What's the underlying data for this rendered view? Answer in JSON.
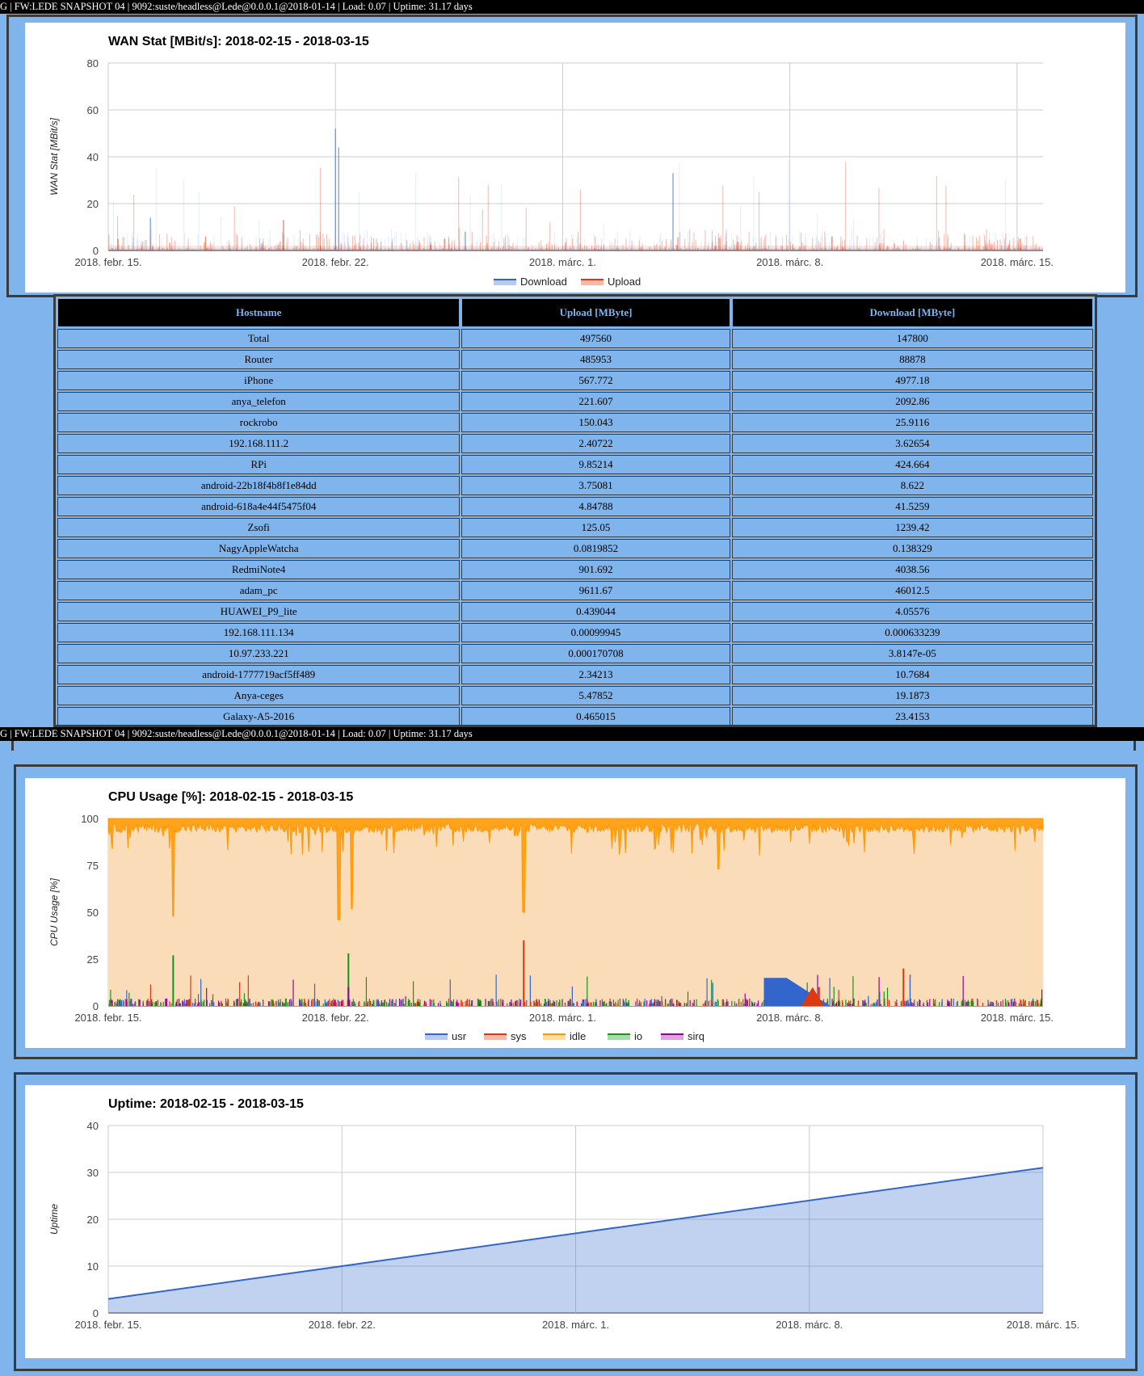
{
  "statusbar": {
    "text": "G | FW:LEDE SNAPSHOT 04 | 9092:suste/headless@Lede@0.0.0.1@2018-01-14 | Load: 0.07 | Uptime: 31.17 days"
  },
  "colors": {
    "page_bg": "#7fb4ec",
    "download": "#3366cc",
    "upload": "#dc3912",
    "usr": "#3366cc",
    "sys": "#dc3912",
    "idle": "#ff9900",
    "io": "#109618",
    "sirq": "#990099"
  },
  "x_ticks": [
    "2018. febr. 15.",
    "2018. febr. 22.",
    "2018. márc. 1.",
    "2018. márc. 8.",
    "2018. márc. 15."
  ],
  "table": {
    "headers": [
      "Hostname",
      "Upload [MByte]",
      "Download [MByte]"
    ],
    "rows": [
      [
        "Total",
        "497560",
        "147800"
      ],
      [
        "Router",
        "485953",
        "88878"
      ],
      [
        "iPhone",
        "567.772",
        "4977.18"
      ],
      [
        "anya_telefon",
        "221.607",
        "2092.86"
      ],
      [
        "rockrobo",
        "150.043",
        "25.9116"
      ],
      [
        "192.168.111.2",
        "2.40722",
        "3.62654"
      ],
      [
        "RPi",
        "9.85214",
        "424.664"
      ],
      [
        "android-22b18f4b8f1e84dd",
        "3.75081",
        "8.622"
      ],
      [
        "android-618a4e44f5475f04",
        "4.84788",
        "41.5259"
      ],
      [
        "Zsofi",
        "125.05",
        "1239.42"
      ],
      [
        "NagyAppleWatcha",
        "0.0819852",
        "0.138329"
      ],
      [
        "RedmiNote4",
        "901.692",
        "4038.56"
      ],
      [
        "adam_pc",
        "9611.67",
        "46012.5"
      ],
      [
        "HUAWEI_P9_lite",
        "0.439044",
        "4.05576"
      ],
      [
        "192.168.111.134",
        "0.00099945",
        "0.000633239"
      ],
      [
        "10.97.233.221",
        "0.000170708",
        "3.8147e-05"
      ],
      [
        "android-1777719acf5ff489",
        "2.34213",
        "10.7684"
      ],
      [
        "Anya-ceges",
        "5.47852",
        "19.1873"
      ],
      [
        "Galaxy-A5-2016",
        "0.465015",
        "23.4153"
      ]
    ]
  },
  "chart_data": [
    {
      "type": "area",
      "title": "WAN Stat [MBit/s]: 2018-02-15 - 2018-03-15",
      "ylabel": "WAN Stat [MBit/s]",
      "xlabel": "",
      "x_ticks": [
        "2018. febr. 15.",
        "2018. febr. 22.",
        "2018. márc. 1.",
        "2018. márc. 8.",
        "2018. márc. 15."
      ],
      "y_ticks": [
        0,
        20,
        40,
        60,
        80
      ],
      "ylim": [
        0,
        80
      ],
      "xlim_days": [
        0,
        28.8
      ],
      "legend": "bottom",
      "grid": true,
      "series": [
        {
          "name": "Download",
          "spikes": [
            [
              7.0,
              52
            ],
            [
              7.1,
              44
            ],
            [
              17.4,
              33
            ],
            [
              1.3,
              14
            ],
            [
              11.0,
              8
            ]
          ],
          "baseline": 1
        },
        {
          "name": "Upload",
          "spikes": [
            [
              5.4,
              13
            ],
            [
              0.3,
              5
            ],
            [
              3.0,
              6
            ],
            [
              22.3,
              6
            ],
            [
              28.1,
              5
            ]
          ],
          "baseline": 2
        }
      ]
    },
    {
      "type": "area",
      "title": "CPU Usage [%]: 2018-02-15 - 2018-03-15",
      "ylabel": "CPU Usage [%]",
      "xlabel": "",
      "x_ticks": [
        "2018. febr. 15.",
        "2018. febr. 22.",
        "2018. márc. 1.",
        "2018. márc. 8.",
        "2018. márc. 15."
      ],
      "y_ticks": [
        0,
        25,
        50,
        75,
        100
      ],
      "ylim": [
        0,
        100
      ],
      "xlim_days": [
        0,
        28.8
      ],
      "legend": "bottom",
      "grid": true,
      "series": [
        {
          "name": "usr",
          "level": 2,
          "plateau": [
            [
              20.2,
              15
            ],
            [
              21.3,
              15
            ]
          ]
        },
        {
          "name": "sys",
          "level": 2,
          "spikes": [
            [
              12.8,
              35
            ],
            [
              21.9,
              10
            ],
            [
              24.5,
              20
            ]
          ]
        },
        {
          "name": "idle",
          "level": 95,
          "dips": [
            [
              2.0,
              48
            ],
            [
              7.1,
              46
            ],
            [
              12.8,
              50
            ],
            [
              7.5,
              52
            ],
            [
              18.8,
              73
            ]
          ]
        },
        {
          "name": "io",
          "level": 1,
          "spikes": [
            [
              2.0,
              27
            ],
            [
              7.4,
              28
            ]
          ]
        },
        {
          "name": "sirq",
          "level": 0.5,
          "spikes": [
            [
              7.4,
              10
            ]
          ]
        }
      ]
    },
    {
      "type": "area",
      "title": "Uptime: 2018-02-15 - 2018-03-15",
      "ylabel": "Uptime",
      "xlabel": "",
      "x_ticks": [
        "2018. febr. 15.",
        "2018. febr. 22.",
        "2018. márc. 1.",
        "2018. márc. 8.",
        "2018. márc. 15."
      ],
      "y_ticks": [
        0,
        10,
        20,
        30,
        40
      ],
      "ylim": [
        0,
        40
      ],
      "xlim_days": [
        0,
        28
      ],
      "grid": true,
      "series": [
        {
          "name": "Uptime",
          "x_days": [
            0,
            28
          ],
          "values": [
            3,
            31
          ]
        }
      ]
    }
  ]
}
